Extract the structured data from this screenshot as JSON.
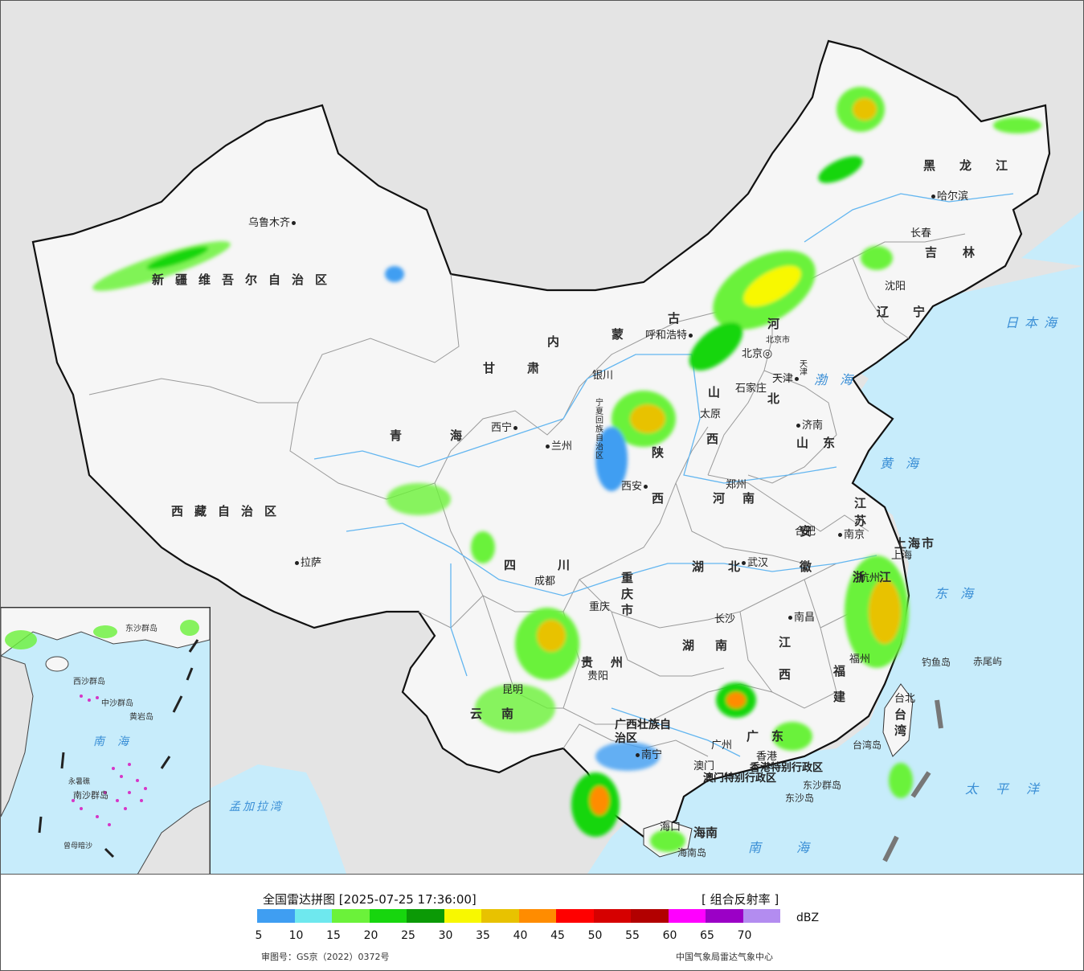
{
  "header": {
    "title": "全国雷达拼图 [2025-07-25 17:36:00]",
    "product": "[ 组合反射率 ]",
    "unit": "dBZ",
    "review_no": "审图号：GS京（2022）0372号",
    "source": "中国气象局雷达气象中心"
  },
  "legend": {
    "ticks": [
      "5",
      "10",
      "15",
      "20",
      "25",
      "30",
      "35",
      "40",
      "45",
      "50",
      "55",
      "60",
      "65",
      "70"
    ],
    "colors": [
      "#3f9ef2",
      "#6ee8ee",
      "#6bf23a",
      "#17d60e",
      "#0b9a06",
      "#f8f800",
      "#e8c200",
      "#ff8c00",
      "#ff0000",
      "#d60000",
      "#b20000",
      "#ff00ff",
      "#9b00c6",
      "#b38cf0"
    ]
  },
  "provinces": {
    "xinjiang": "新疆维吾尔自治区",
    "xizang": "西藏自治区",
    "qinghai": "青海",
    "gansu": "甘肃",
    "neimenggu_1": "内",
    "neimenggu_2": "蒙",
    "neimenggu_3": "古",
    "ningxia": "宁夏回族自治区",
    "shaanxi_1": "陕",
    "shaanxi_2": "西",
    "shanxi_1": "山",
    "shanxi_2": "西",
    "hebei_1": "河",
    "hebei_2": "北",
    "henan": "河南",
    "shandong": "山东",
    "sichuan": "四川",
    "chongqing": "重庆市",
    "hubei": "湖北",
    "hunan": "湖南",
    "guizhou": "贵州",
    "yunnan": "云南",
    "guangxi": "广西壮族自治区",
    "guangdong": "广东",
    "jiangxi": "江西",
    "fujian": "福建",
    "zhejiang": "浙江",
    "anhui": "安徽",
    "jiangsu": "江苏",
    "shanghai": "上海市",
    "heilongjiang": "黑龙江",
    "jilin": "吉林",
    "liaoning": "辽宁",
    "hainan": "海南",
    "taiwan": "台湾",
    "hk": "香港特别行政区",
    "macau": "澳门特别行政区",
    "beijing": "北京市",
    "tianjin": "天津"
  },
  "cities": [
    {
      "name": "乌鲁木齐"
    },
    {
      "name": "拉萨"
    },
    {
      "name": "西宁"
    },
    {
      "name": "兰州"
    },
    {
      "name": "银川"
    },
    {
      "name": "呼和浩特"
    },
    {
      "name": "北京"
    },
    {
      "name": "天津"
    },
    {
      "name": "石家庄"
    },
    {
      "name": "太原"
    },
    {
      "name": "济南"
    },
    {
      "name": "西安"
    },
    {
      "name": "郑州"
    },
    {
      "name": "合肥"
    },
    {
      "name": "南京"
    },
    {
      "name": "上海"
    },
    {
      "name": "杭州"
    },
    {
      "name": "武汉"
    },
    {
      "name": "成都"
    },
    {
      "name": "重庆"
    },
    {
      "name": "长沙"
    },
    {
      "name": "南昌"
    },
    {
      "name": "福州"
    },
    {
      "name": "贵阳"
    },
    {
      "name": "昆明"
    },
    {
      "name": "南宁"
    },
    {
      "name": "广州"
    },
    {
      "name": "香港"
    },
    {
      "name": "澳门"
    },
    {
      "name": "海口"
    },
    {
      "name": "台北"
    },
    {
      "name": "哈尔滨"
    },
    {
      "name": "长春"
    },
    {
      "name": "沈阳"
    }
  ],
  "seas": {
    "bohai": "渤海",
    "huanghai": "黄海",
    "donghai": "东海",
    "nanhai": "南海",
    "taipingyang": "太平洋",
    "ribenhai": "日本海",
    "mengjialawan": "孟加拉湾"
  },
  "islands": {
    "diaoyu": "钓鱼岛",
    "chiwei": "赤尾屿",
    "dongsha_qundao": "东沙群岛",
    "dongsha_dao": "东沙岛",
    "taiwan_dao": "台湾岛",
    "hainan_dao": "海南岛"
  },
  "inset": {
    "sea": "南海",
    "labels": [
      "东沙群岛",
      "西沙群岛",
      "中沙群岛",
      "黄岩岛",
      "南沙群岛",
      "永暑礁",
      "曾母暗沙"
    ]
  }
}
